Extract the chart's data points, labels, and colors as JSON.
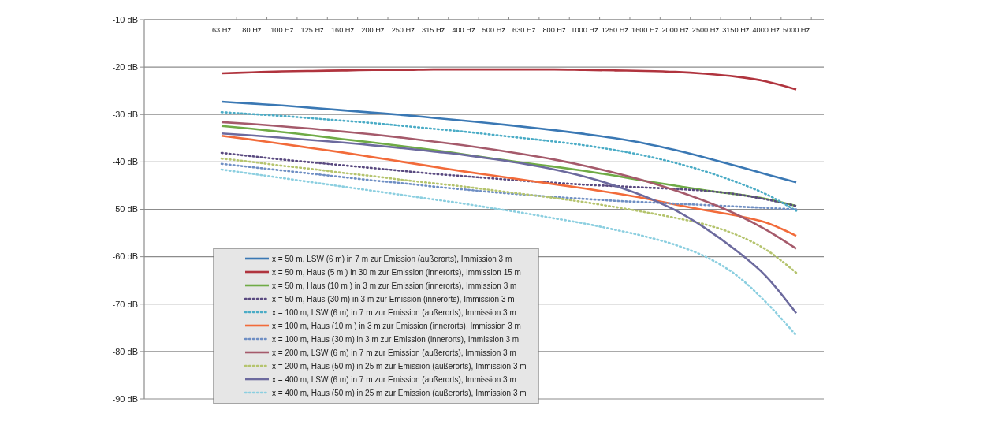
{
  "chart_data": {
    "type": "line",
    "categories": [
      "63 Hz",
      "80 Hz",
      "100 Hz",
      "125 Hz",
      "160 Hz",
      "200 Hz",
      "250 Hz",
      "315 Hz",
      "400 Hz",
      "500 Hz",
      "630 Hz",
      "800 Hz",
      "1000 Hz",
      "1250 Hz",
      "1600 Hz",
      "2000 Hz",
      "2500 Hz",
      "3150 Hz",
      "4000 Hz",
      "5000 Hz"
    ],
    "ylim": [
      -90,
      -10
    ],
    "yticks": [
      {
        "value": -90,
        "label": "-90 dB"
      },
      {
        "value": -80,
        "label": "-80 dB"
      },
      {
        "value": -70,
        "label": "-70 dB"
      },
      {
        "value": -60,
        "label": "-60 dB"
      },
      {
        "value": -50,
        "label": "-50 dB"
      },
      {
        "value": -40,
        "label": "-40 dB"
      },
      {
        "value": -30,
        "label": "-30 dB"
      },
      {
        "value": -20,
        "label": "-20 dB"
      },
      {
        "value": -10,
        "label": "-10 dB"
      }
    ],
    "grid": "y",
    "legend": "bottom left",
    "marker": "none",
    "series": [
      {
        "name": "x = 50 m, LSW (6 m) in 7 m zur Emission (außerorts), Immission 3 m",
        "color": "#3a78b4",
        "line_style": "solid",
        "values": [
          -27.3,
          -27.7,
          -28.1,
          -28.6,
          -29.1,
          -29.6,
          -30.1,
          -30.7,
          -31.3,
          -31.9,
          -32.6,
          -33.3,
          -34.1,
          -35,
          -36.1,
          -37.5,
          -39.1,
          -40.8,
          -42.6,
          -44.3
        ]
      },
      {
        "name": "x = 50 m, Haus (5 m ) in 30 m zur Emission (innerorts), Immission 15 m",
        "color": "#b0343e",
        "line_style": "solid",
        "values": [
          -21.3,
          -21.1,
          -20.9,
          -20.8,
          -20.7,
          -20.6,
          -20.6,
          -20.5,
          -20.5,
          -20.5,
          -20.5,
          -20.5,
          -20.6,
          -20.7,
          -20.8,
          -21,
          -21.4,
          -22,
          -23,
          -24.7
        ]
      },
      {
        "name": "x = 50 m, Haus (10 m ) in 3 m zur Emission (innerorts), Immission 3 m",
        "color": "#6fab46",
        "line_style": "solid",
        "values": [
          -32.4,
          -33,
          -33.7,
          -34.4,
          -35.2,
          -35.9,
          -36.7,
          -37.5,
          -38.4,
          -39.3,
          -40.2,
          -41,
          -41.9,
          -42.9,
          -44,
          -45,
          -46,
          -46.8,
          -47.8,
          -49.3
        ]
      },
      {
        "name": "x = 50 m, Haus (30 m) in 3 m zur Emission (innerorts), Immission 3 m",
        "color": "#5a4a80",
        "line_style": "dotted",
        "values": [
          -38.1,
          -38.8,
          -39.5,
          -40.1,
          -40.7,
          -41.3,
          -41.9,
          -42.5,
          -43,
          -43.5,
          -44,
          -44.4,
          -44.8,
          -45.1,
          -45.4,
          -45.7,
          -46.1,
          -46.8,
          -47.9,
          -49.3
        ]
      },
      {
        "name": "x = 100 m, LSW (6 m) in 7 m zur Emission (außerorts), Immission 3 m",
        "color": "#4bacc6",
        "line_style": "dotted",
        "values": [
          -29.5,
          -29.9,
          -30.3,
          -30.8,
          -31.3,
          -31.8,
          -32.4,
          -33,
          -33.6,
          -34.3,
          -35,
          -35.7,
          -36.5,
          -37.5,
          -38.7,
          -40.2,
          -42,
          -44.2,
          -46.8,
          -50.3
        ]
      },
      {
        "name": "x = 100 m, Haus (10 m ) in 3 m zur Emission (innerorts), Immission 3 m",
        "color": "#f26b3a",
        "line_style": "solid",
        "values": [
          -34.5,
          -35.3,
          -36.2,
          -37.1,
          -38,
          -39,
          -40,
          -41,
          -42,
          -42.9,
          -43.8,
          -44.7,
          -45.6,
          -46.6,
          -47.7,
          -49,
          -50.2,
          -51.3,
          -52.8,
          -55.6
        ]
      },
      {
        "name": "x = 100 m, Haus (30 m) in 3 m zur Emission (innerorts), Immission 3 m",
        "color": "#6f8fc4",
        "line_style": "dotted",
        "values": [
          -40.4,
          -41.1,
          -41.8,
          -42.5,
          -43.2,
          -43.9,
          -44.5,
          -45.2,
          -45.8,
          -46.4,
          -46.9,
          -47.4,
          -47.8,
          -48.2,
          -48.5,
          -48.8,
          -49.1,
          -49.4,
          -49.7,
          -50
        ]
      },
      {
        "name": "x = 200 m, LSW (6 m) in 7 m zur Emission (außerorts), Immission 3 m",
        "color": "#a55a6b",
        "line_style": "solid",
        "values": [
          -31.6,
          -32,
          -32.5,
          -33,
          -33.6,
          -34.2,
          -34.9,
          -35.7,
          -36.5,
          -37.4,
          -38.4,
          -39.5,
          -40.8,
          -42.3,
          -44,
          -46,
          -48.3,
          -51,
          -54.3,
          -58.3
        ]
      },
      {
        "name": "x = 200 m, Haus (50 m) in 25 m zur Emission (außerorts), Immission 3 m",
        "color": "#b5c46e",
        "line_style": "dotted",
        "values": [
          -39.3,
          -40,
          -40.8,
          -41.5,
          -42.3,
          -43,
          -43.8,
          -44.5,
          -45.2,
          -46,
          -46.8,
          -47.6,
          -48.5,
          -49.5,
          -50.6,
          -51.8,
          -53.2,
          -55.3,
          -58.5,
          -63.4
        ]
      },
      {
        "name": "x = 400 m, LSW (6 m) in 7 m zur Emission (außerorts), Immission 3 m",
        "color": "#6c6a9e",
        "line_style": "solid",
        "values": [
          -34,
          -34.4,
          -34.9,
          -35.4,
          -35.9,
          -36.5,
          -37.1,
          -37.8,
          -38.5,
          -39.4,
          -40.4,
          -41.6,
          -43.1,
          -45,
          -47.3,
          -50.2,
          -54,
          -58.6,
          -64.1,
          -71.9
        ]
      },
      {
        "name": "x = 400 m, Haus (50 m) in 25 m zur Emission (außerorts), Immission 3 m",
        "color": "#8ccfe0",
        "line_style": "dotted",
        "values": [
          -41.6,
          -42.5,
          -43.4,
          -44.3,
          -45.2,
          -46.1,
          -47,
          -47.9,
          -48.8,
          -49.8,
          -50.8,
          -51.9,
          -53,
          -54.3,
          -55.7,
          -57.5,
          -60,
          -63.8,
          -69.6,
          -76.6
        ]
      }
    ]
  }
}
